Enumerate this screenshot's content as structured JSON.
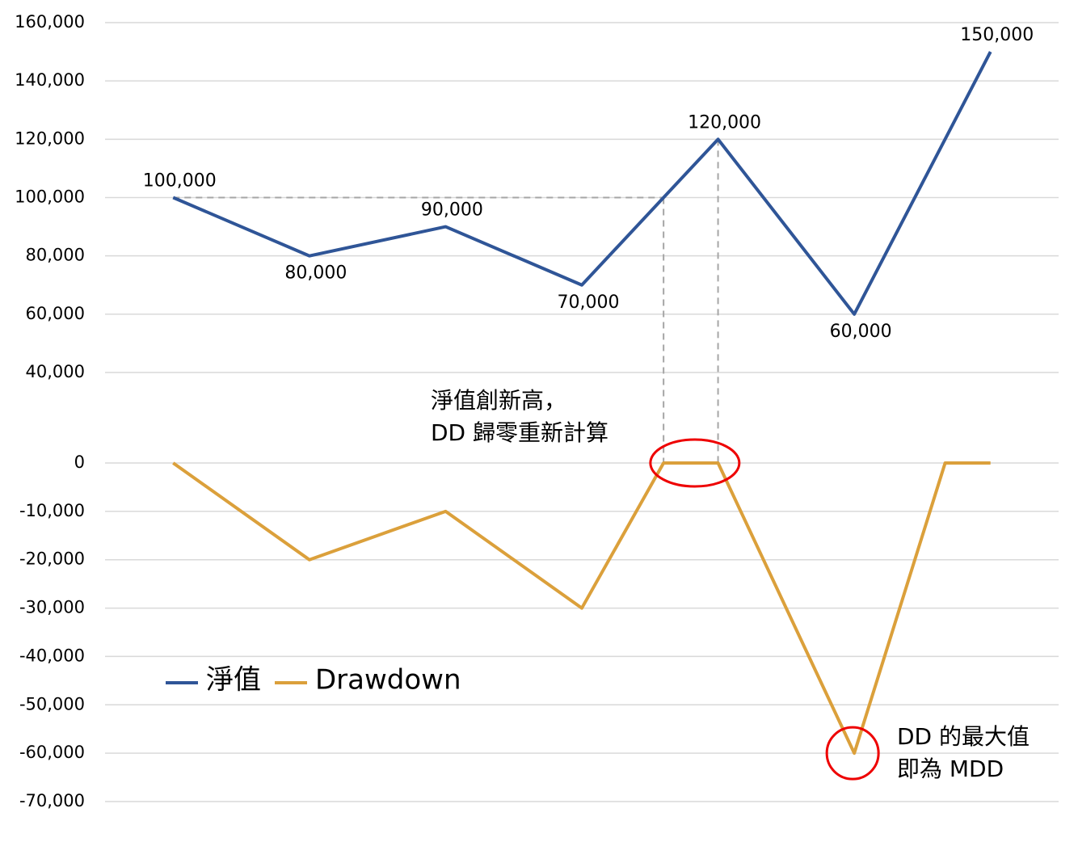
{
  "chart_data": [
    {
      "type": "line",
      "x": [
        0,
        1,
        2,
        3,
        4,
        5,
        6
      ],
      "xlim": [
        -0.5,
        6.5
      ],
      "series": [
        {
          "name": "淨值",
          "color": "#2f5597",
          "values": [
            100000,
            80000,
            90000,
            70000,
            120000,
            60000,
            150000
          ],
          "value_labels": [
            "100,000",
            "80,000",
            "90,000",
            "70,000",
            "120,000",
            "60,000",
            "150,000"
          ]
        }
      ],
      "ylim": [
        40000,
        160000
      ],
      "yticks": [
        {
          "value": 40000,
          "label": "40,000"
        },
        {
          "value": 60000,
          "label": "60,000"
        },
        {
          "value": 80000,
          "label": "80,000"
        },
        {
          "value": 100000,
          "label": "100,000"
        },
        {
          "value": 120000,
          "label": "120,000"
        },
        {
          "value": 140000,
          "label": "140,000"
        },
        {
          "value": 160000,
          "label": "160,000"
        }
      ],
      "grid": true
    },
    {
      "type": "line",
      "x": [
        0,
        1,
        2,
        3,
        3.6,
        4,
        5,
        5.667,
        6
      ],
      "xlim": [
        -0.5,
        6.5
      ],
      "series": [
        {
          "name": "Drawdown",
          "color": "#dba03b",
          "values": [
            0,
            -20000,
            -10000,
            -30000,
            0,
            0,
            -60000,
            0,
            0
          ]
        }
      ],
      "ylim": [
        -70000,
        0
      ],
      "yticks": [
        {
          "value": -70000,
          "label": "-70,000"
        },
        {
          "value": -60000,
          "label": "-60,000"
        },
        {
          "value": -50000,
          "label": "-50,000"
        },
        {
          "value": -40000,
          "label": "-40,000"
        },
        {
          "value": -30000,
          "label": "-30,000"
        },
        {
          "value": -20000,
          "label": "-20,000"
        },
        {
          "value": -10000,
          "label": "-10,000"
        },
        0
      ],
      "grid": true,
      "annotations": [
        [
          "淨值創新高，",
          "DD 歸零重新計算"
        ],
        [
          "DD 的最大值",
          "即為 MDD"
        ]
      ]
    }
  ]
}
